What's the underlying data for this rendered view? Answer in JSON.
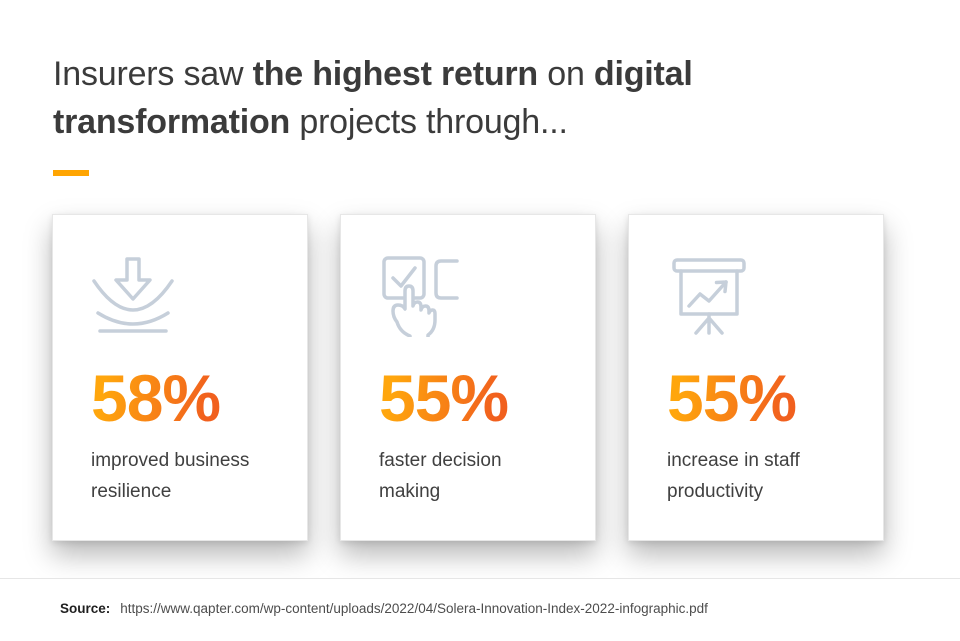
{
  "title": {
    "lines": [
      {
        "segments": [
          {
            "text": "Insurers saw ",
            "bold": false
          },
          {
            "text": "the highest return",
            "bold": true
          },
          {
            "text": " on ",
            "bold": false
          },
          {
            "text": "digital",
            "bold": true
          }
        ]
      },
      {
        "segments": [
          {
            "text": "transformation",
            "bold": true
          },
          {
            "text": " projects through...",
            "bold": false
          }
        ]
      }
    ],
    "plain": "Insurers saw the highest return on digital transformation projects through..."
  },
  "colors": {
    "accent": "#ffa502",
    "icon_stroke": "#c6cfda",
    "grad_start": "#ffa60d",
    "grad_end": "#f1601e",
    "title_text": "#3b3b3b",
    "label_text": "#404040"
  },
  "cards": [
    {
      "icon": "impact-absorption-icon",
      "value": "58%",
      "label": "improved business resilience"
    },
    {
      "icon": "checkbox-click-icon",
      "value": "55%",
      "label": "faster decision making"
    },
    {
      "icon": "presentation-growth-icon",
      "value": "55%",
      "label": "increase in staff productivity"
    }
  ],
  "footer": {
    "source_label": "Source:",
    "source_url": "https://www.qapter.com/wp-content/uploads/2022/04/Solera-Innovation-Index-2022-infographic.pdf"
  },
  "chart_data": {
    "type": "bar",
    "title": "Insurers saw the highest return on digital transformation projects through...",
    "categories": [
      "improved business resilience",
      "faster decision making",
      "increase in staff productivity"
    ],
    "values": [
      58,
      55,
      55
    ],
    "unit": "%",
    "xlabel": "",
    "ylabel": "",
    "ylim": [
      0,
      100
    ],
    "legend": false,
    "grid": false,
    "source": "https://www.qapter.com/wp-content/uploads/2022/04/Solera-Innovation-Index-2022-infographic.pdf"
  }
}
